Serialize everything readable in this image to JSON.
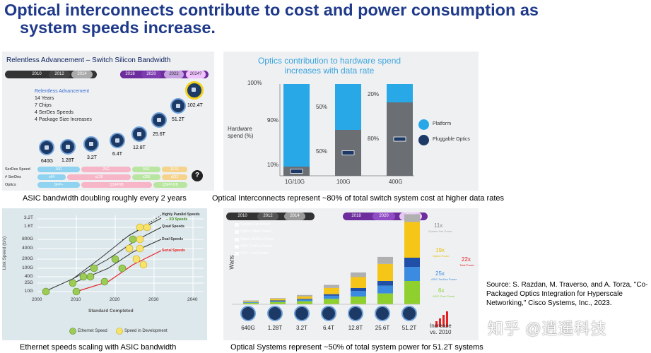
{
  "slide": {
    "title_line1": "Optical interconnects contribute to cost and power consumption as",
    "title_line2": "system speeds increase."
  },
  "panel_a": {
    "title": "Relentless Advancement – Switch Silicon Bandwidth",
    "timeline": [
      "2010",
      "2012",
      "2014",
      "2018",
      "2020",
      "2022",
      "2024?"
    ],
    "notes": [
      "Relentless Advancement",
      "14 Years",
      "7 Chips",
      "4 SerDes Speeds",
      "4 Package Size Increases"
    ],
    "chips": [
      "640G",
      "1.28T",
      "3.2T",
      "6.4T",
      "12.8T",
      "25.6T",
      "51.2T",
      "102.4T"
    ],
    "rows": [
      "SerDes Speed",
      "# SerDes",
      "Optics"
    ],
    "serdes_speeds": [
      "10G",
      "25G",
      "56G",
      "112G"
    ],
    "serdes_counts": [
      "x64",
      "x128",
      "x256",
      "x512"
    ],
    "optics": [
      "SFP+",
      "QSFP28",
      "QSFP-DD"
    ],
    "caption": "ASIC bandwidth doubling roughly every 2 years"
  },
  "panel_b": {
    "title_line1": "Optics contribution to hardware spend",
    "title_line2": "increases with data rate",
    "ylabel_line1": "Hardware",
    "ylabel_line2": "spend (%)",
    "bars": [
      {
        "label": "1G/10G",
        "platform": 90,
        "optics": 10
      },
      {
        "label": "100G",
        "platform": 50,
        "optics": 50
      },
      {
        "label": "400G",
        "platform": 20,
        "optics": 80
      }
    ],
    "pct_labels": [
      "100%",
      "90%",
      "10%",
      "50%",
      "50%",
      "20%",
      "80%"
    ],
    "legend": [
      "Platform",
      "Pluggable Optics"
    ],
    "caption": "Optical Interconnects represent ~80% of total switch system cost at higher data rates",
    "colors": {
      "platform": "#29a8e8",
      "optics": "#6b6e73"
    }
  },
  "panel_c": {
    "yticks": [
      "3.2T",
      "1.6T",
      "800G",
      "400G",
      "200G",
      "100G",
      "40G",
      "25G",
      "10G"
    ],
    "xticks": [
      "2000",
      "2010",
      "2020",
      "2030",
      "2040"
    ],
    "ylabel": "Link Speed (b/s)",
    "xlabel": "Standard Completed",
    "annotations": [
      "Highly Parallel Speeds",
      "– XD Speeds",
      "Quad Speeds",
      "Dual Speeds",
      "Serial Speeds"
    ],
    "legend": [
      "Ethernet Speed",
      "Speed in Development"
    ],
    "caption": "Ethernet speeds scaling with ASIC bandwidth"
  },
  "panel_d": {
    "timeline": [
      "2010",
      "2012",
      "2014",
      "2018",
      "2020",
      "2022"
    ],
    "legend": [
      "System Fan Power",
      "Optics Other Power",
      "Optics SerDes Power",
      "ASIC SerDes Power",
      "ASIC Core Power"
    ],
    "ylabel": "Watts",
    "categories": [
      "640G",
      "1.28T",
      "3.2T",
      "6.4T",
      "12.8T",
      "25.6T",
      "51.2T"
    ],
    "multipliers": [
      "11x",
      "System Fan Power",
      "19x",
      "Optics Power",
      "22x",
      "Total Power",
      "25x",
      "ASIC SerDes Power",
      "6x",
      "ASIC Core Power"
    ],
    "increase_label_line1": "Increase",
    "increase_label_line2": "vs. 2010",
    "caption": "Optical Systems represent ~50% of total system power for 51.2T systems"
  },
  "source": "Source: S. Razdan, M. Traverso, and A. Torza, \"Co-Packaged Optics Integration for Hyperscale Networking,\" Cisco Systems, Inc., 2023.",
  "watermark": "知乎 @逍遥科技"
}
